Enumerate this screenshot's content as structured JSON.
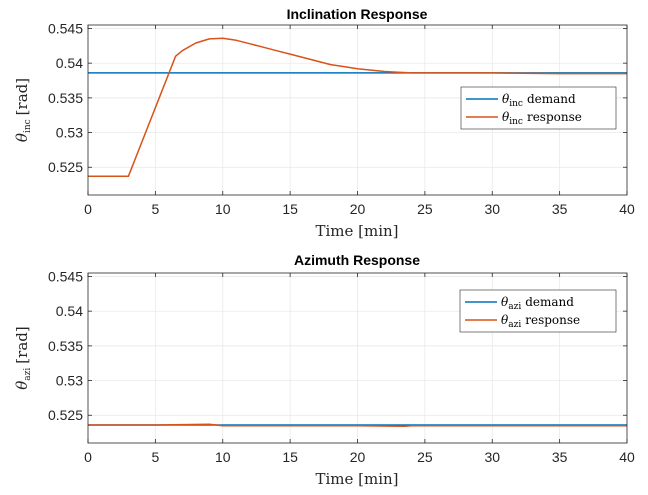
{
  "colors": {
    "demand": "#0072BD",
    "response": "#D95319",
    "grid": "#e6e6e6",
    "axis": "#262626"
  },
  "chart_data": [
    {
      "type": "line",
      "title": "Inclination Response",
      "xlabel": "Time [min]",
      "ylabel_symbol": "θ",
      "ylabel_sub": "inc",
      "ylabel_unit": "[rad]",
      "xlim": [
        0,
        40
      ],
      "ylim": [
        0.521,
        0.5455
      ],
      "xticks": [
        0,
        5,
        10,
        15,
        20,
        25,
        30,
        35,
        40
      ],
      "yticks": [
        0.525,
        0.53,
        0.535,
        0.54,
        0.545
      ],
      "ytick_labels": [
        "0.525",
        "0.53",
        "0.535",
        "0.54",
        "0.545"
      ],
      "grid": true,
      "legend_position": "right",
      "series": [
        {
          "name_symbol": "θ",
          "name_sub": "inc",
          "name_text": "demand",
          "color": "#0072BD",
          "x": [
            0,
            40
          ],
          "y": [
            0.5386,
            0.5386
          ]
        },
        {
          "name_symbol": "θ",
          "name_sub": "inc",
          "name_text": "response",
          "color": "#D95319",
          "x": [
            0,
            3,
            6.5,
            7,
            8,
            9,
            10,
            11,
            12,
            13,
            14,
            15,
            16,
            17,
            18,
            19,
            20,
            21,
            22,
            23,
            24,
            25,
            27,
            30,
            35,
            40
          ],
          "y": [
            0.5237,
            0.5237,
            0.541,
            0.5418,
            0.5429,
            0.5435,
            0.5436,
            0.5433,
            0.5428,
            0.5423,
            0.5418,
            0.5413,
            0.5408,
            0.5403,
            0.5398,
            0.5395,
            0.5392,
            0.539,
            0.5388,
            0.5387,
            0.5386,
            0.5386,
            0.5386,
            0.5386,
            0.5385,
            0.5385
          ]
        }
      ]
    },
    {
      "type": "line",
      "title": "Azimuth Response",
      "xlabel": "Time [min]",
      "ylabel_symbol": "θ",
      "ylabel_sub": "azi",
      "ylabel_unit": "[rad]",
      "xlim": [
        0,
        40
      ],
      "ylim": [
        0.521,
        0.5455
      ],
      "xticks": [
        0,
        5,
        10,
        15,
        20,
        25,
        30,
        35,
        40
      ],
      "yticks": [
        0.525,
        0.53,
        0.535,
        0.54,
        0.545
      ],
      "ytick_labels": [
        "0.525",
        "0.53",
        "0.535",
        "0.54",
        "0.545"
      ],
      "grid": true,
      "legend_position": "top-right",
      "series": [
        {
          "name_symbol": "θ",
          "name_sub": "azi",
          "name_text": "demand",
          "color": "#0072BD",
          "x": [
            0,
            40
          ],
          "y": [
            0.5236,
            0.5236
          ]
        },
        {
          "name_symbol": "θ",
          "name_sub": "azi",
          "name_text": "response",
          "color": "#D95319",
          "x": [
            0,
            5,
            9,
            10,
            15,
            20,
            23.5,
            24,
            30,
            35,
            40
          ],
          "y": [
            0.5236,
            0.5236,
            0.5237,
            0.5235,
            0.5235,
            0.5235,
            0.5234,
            0.5235,
            0.5235,
            0.5235,
            0.5235
          ]
        }
      ]
    }
  ]
}
